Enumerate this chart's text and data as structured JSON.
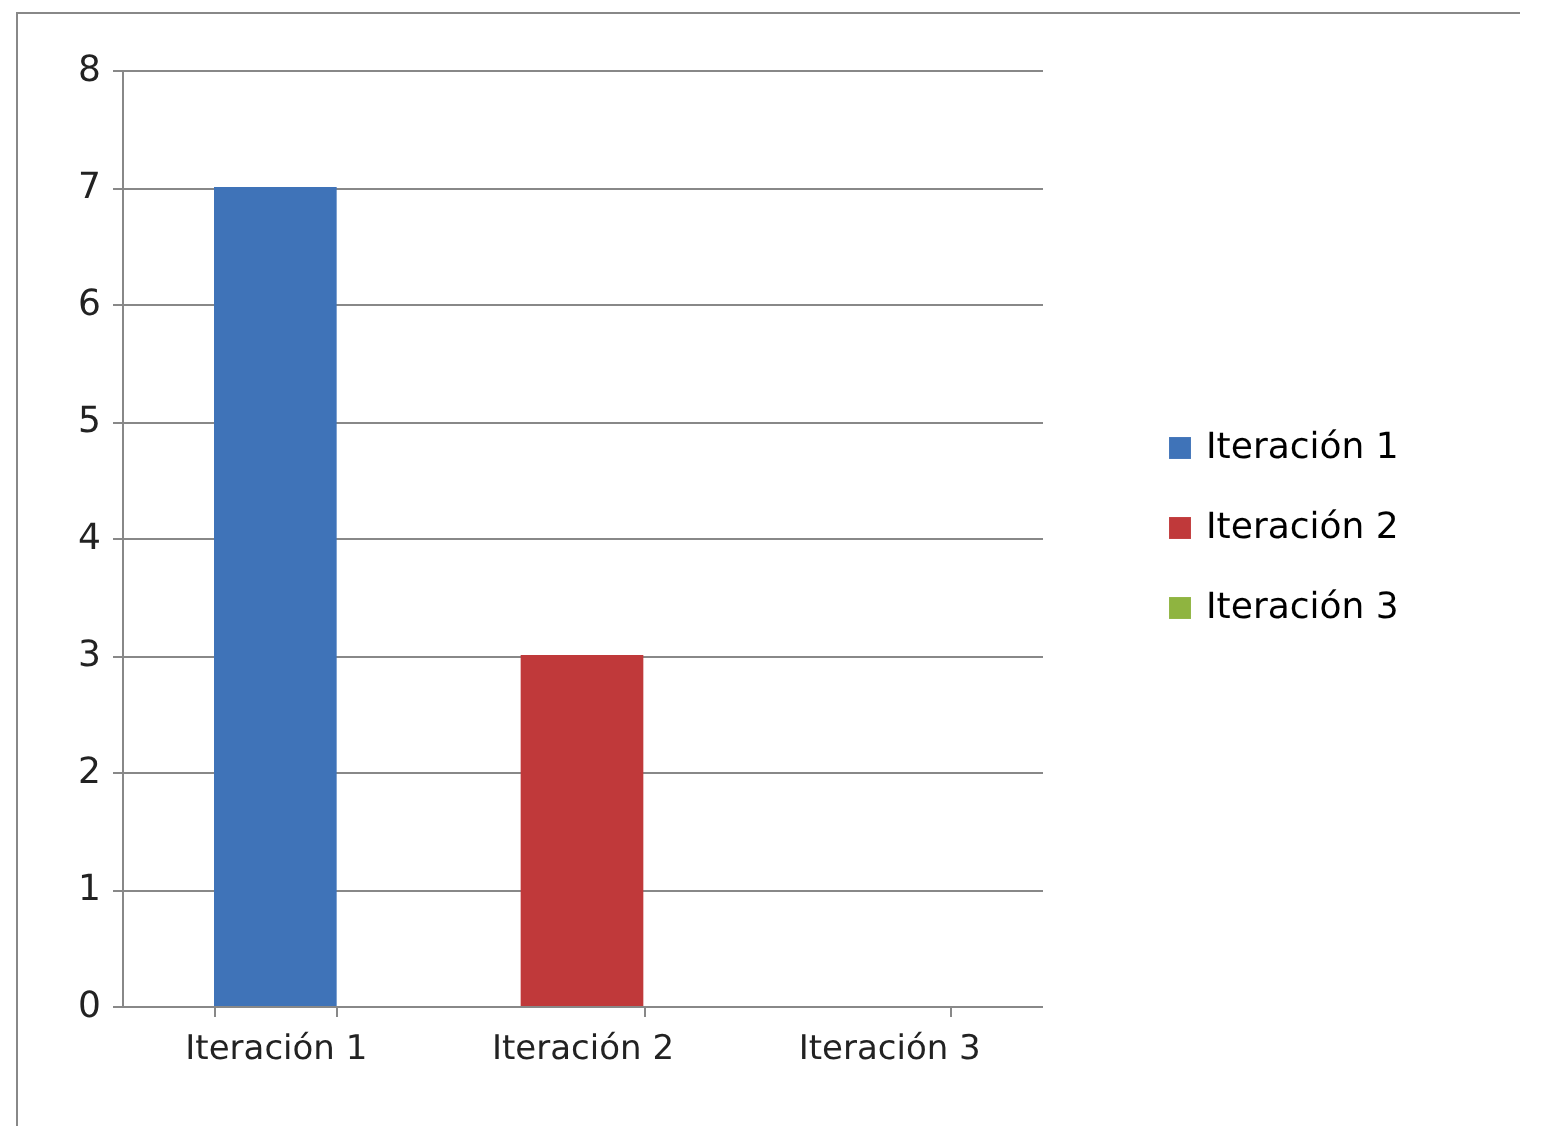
{
  "chart_data": {
    "type": "bar",
    "categories": [
      "Iteración 1",
      "Iteración 2",
      "Iteración 3"
    ],
    "series": [
      {
        "name": "Iteración 1",
        "color": "#3f73b8",
        "values": [
          7,
          null,
          null
        ]
      },
      {
        "name": "Iteración 2",
        "color": "#c0393a",
        "values": [
          null,
          3,
          null
        ]
      },
      {
        "name": "Iteración 3",
        "color": "#8fb440",
        "values": [
          null,
          null,
          0
        ]
      }
    ],
    "ylim": [
      0,
      8
    ],
    "yticks": [
      0,
      1,
      2,
      3,
      4,
      5,
      6,
      7,
      8
    ],
    "grid": "y",
    "legend": "right"
  }
}
